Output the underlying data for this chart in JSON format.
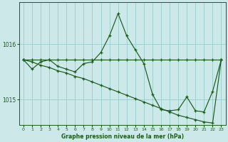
{
  "title": "Graphe pression niveau de la mer (hPa)",
  "bg_color": "#cce8e8",
  "grid_color": "#99cccc",
  "line_color": "#1a5c1a",
  "xlim": [
    -0.5,
    23.5
  ],
  "ylim": [
    1014.55,
    1016.75
  ],
  "yticks": [
    1015,
    1016
  ],
  "xticks": [
    0,
    1,
    2,
    3,
    4,
    5,
    6,
    7,
    8,
    9,
    10,
    11,
    12,
    13,
    14,
    15,
    16,
    17,
    18,
    19,
    20,
    21,
    22,
    23
  ],
  "series_peak_x": [
    0,
    1,
    2,
    3,
    4,
    5,
    6,
    7,
    8,
    9,
    10,
    11,
    12,
    13,
    14,
    15,
    16,
    17,
    18,
    19,
    20,
    21,
    22,
    23
  ],
  "series_peak_y": [
    1015.72,
    1015.55,
    1015.68,
    1015.72,
    1015.6,
    1015.55,
    1015.5,
    1015.65,
    1015.68,
    1015.85,
    1016.15,
    1016.55,
    1016.15,
    1015.9,
    1015.65,
    1015.1,
    1014.82,
    1014.8,
    1014.82,
    1015.05,
    1014.8,
    1014.78,
    1015.15,
    1015.72
  ],
  "series_flat_x": [
    0,
    1,
    2,
    3,
    4,
    5,
    6,
    7,
    8,
    9,
    10,
    11,
    12,
    13,
    14,
    15,
    16,
    17,
    18,
    19,
    20,
    21,
    22,
    23
  ],
  "series_flat_y": [
    1015.72,
    1015.72,
    1015.72,
    1015.72,
    1015.72,
    1015.72,
    1015.72,
    1015.72,
    1015.72,
    1015.72,
    1015.72,
    1015.72,
    1015.72,
    1015.72,
    1015.72,
    1015.72,
    1015.72,
    1015.72,
    1015.72,
    1015.72,
    1015.72,
    1015.72,
    1015.72,
    1015.72
  ],
  "series_diag_x": [
    0,
    1,
    2,
    3,
    4,
    5,
    6,
    7,
    8,
    9,
    10,
    11,
    12,
    13,
    14,
    15,
    16,
    17,
    18,
    19,
    20,
    21,
    22,
    23
  ],
  "series_diag_y": [
    1015.72,
    1015.68,
    1015.62,
    1015.58,
    1015.52,
    1015.48,
    1015.42,
    1015.38,
    1015.32,
    1015.26,
    1015.2,
    1015.14,
    1015.08,
    1015.02,
    1014.96,
    1014.9,
    1014.84,
    1014.78,
    1014.72,
    1014.68,
    1014.64,
    1014.6,
    1014.58,
    1015.72
  ]
}
